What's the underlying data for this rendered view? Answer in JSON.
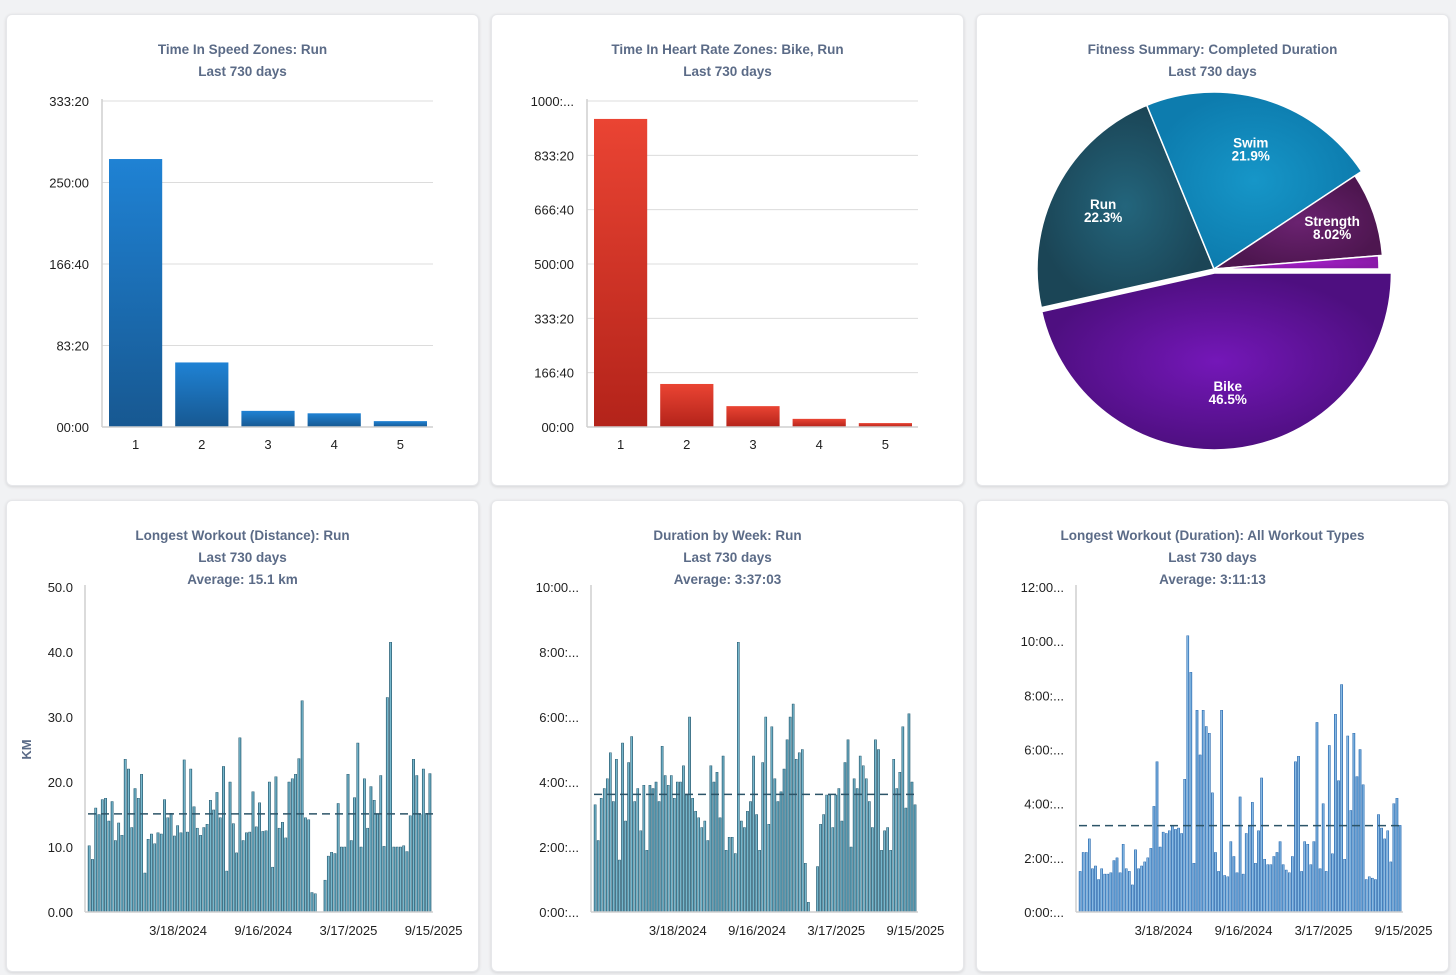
{
  "colors": {
    "title": "#5b6b87",
    "blue_bar": "#1e7fd0",
    "red_bar": "#e23b2c",
    "teal_bar": "#1d5a70",
    "blue_week_bar": "#1a63ad"
  },
  "chart_data": [
    {
      "type": "bar",
      "title": "Time In Speed Zones: Run",
      "subtitle": "Last 730 days",
      "categories": [
        "1",
        "2",
        "3",
        "4",
        "5"
      ],
      "values_hours": [
        274,
        66,
        16.5,
        14,
        6
      ],
      "y_ticks": [
        0,
        83.333,
        166.667,
        250,
        333.333
      ],
      "y_tick_labels": [
        "00:00",
        "83:20",
        "166:40",
        "250:00",
        "333:20"
      ],
      "ylim": [
        0,
        333.333
      ],
      "grid": true,
      "xlabel": "",
      "ylabel": ""
    },
    {
      "type": "bar",
      "title": "Time In Heart Rate Zones: Bike, Run",
      "subtitle": "Last 730 days",
      "categories": [
        "1",
        "2",
        "3",
        "4",
        "5"
      ],
      "values_hours": [
        945,
        132,
        64,
        25,
        12
      ],
      "y_ticks": [
        0,
        166.667,
        333.333,
        500,
        666.667,
        833.333,
        1000
      ],
      "y_tick_labels": [
        "00:00",
        "166:40",
        "333:20",
        "500:00",
        "666:40",
        "833:20",
        "1000:..."
      ],
      "ylim": [
        0,
        1000
      ],
      "grid": true,
      "xlabel": "",
      "ylabel": ""
    },
    {
      "type": "pie",
      "title": "Fitness Summary: Completed Duration",
      "subtitle": "Last 730 days",
      "slices": [
        {
          "label": "Bike",
          "value": 46.5,
          "text": "46.5%",
          "color": "#7417b8"
        },
        {
          "label": "Run",
          "value": 22.3,
          "text": "22.3%",
          "color": "#23657c"
        },
        {
          "label": "Swim",
          "value": 21.9,
          "text": "21.9%",
          "color": "#1696c8"
        },
        {
          "label": "Strength",
          "value": 8.02,
          "text": "8.02%",
          "color": "#6a2270"
        },
        {
          "label": "",
          "value": 1.28,
          "text": "",
          "color": "#a320c8"
        }
      ]
    },
    {
      "type": "bar",
      "title": "Longest Workout (Distance): Run",
      "subtitle": "Last 730 days",
      "average_label": "Average: 15.1 km",
      "average": 15.1,
      "ylabel": "KM",
      "ylim": [
        0,
        50
      ],
      "y_ticks": [
        0,
        10,
        20,
        30,
        40,
        50
      ],
      "y_tick_labels": [
        "0.00",
        "10.0",
        "20.0",
        "30.0",
        "40.0",
        "50.0"
      ],
      "x_ticks": [
        {
          "index": 27,
          "label": "3/18/2024"
        },
        {
          "index": 53,
          "label": "9/16/2024"
        },
        {
          "index": 79,
          "label": "3/17/2025"
        },
        {
          "index": 105,
          "label": "9/15/2025"
        }
      ],
      "values": [
        10.2,
        8.1,
        16,
        15,
        17.3,
        17.5,
        14,
        17,
        11,
        13.7,
        11.8,
        23.5,
        22,
        13,
        19,
        17.5,
        21.2,
        6,
        11.2,
        12,
        10.5,
        12.2,
        12,
        17.3,
        14.5,
        15.2,
        11.7,
        13.3,
        12.2,
        23.4,
        12.3,
        22,
        16.2,
        12.9,
        11.8,
        13,
        13.5,
        17.2,
        15.7,
        18.4,
        14.5,
        22.4,
        6.3,
        20,
        13.6,
        9.1,
        26.8,
        11,
        12.2,
        12.3,
        18.5,
        13.1,
        16.8,
        12.4,
        12.5,
        20,
        6.9,
        20.8,
        12.9,
        13.8,
        11.4,
        20,
        20.5,
        21.2,
        23.6,
        32.5,
        14.5,
        14.2,
        3,
        2.8,
        0,
        0,
        4.9,
        8.6,
        9.2,
        9,
        16.7,
        10,
        10,
        21.2,
        11,
        17.6,
        26,
        10,
        20.5,
        12.9,
        19.3,
        17.2,
        15.1,
        21,
        10.1,
        33,
        41.5,
        10,
        10,
        10,
        10.2,
        9.3,
        14.8,
        23.5,
        21,
        15,
        22,
        15.2,
        21.3
      ]
    },
    {
      "type": "bar",
      "title": "Duration by Week: Run",
      "subtitle": "Last 730 days",
      "average_label": "Average: 3:37:03",
      "average": 3.6175,
      "ylabel": "",
      "ylim": [
        0,
        10
      ],
      "y_ticks": [
        0,
        2,
        4,
        6,
        8,
        10
      ],
      "y_tick_labels": [
        "0:00:...",
        "2:00:...",
        "4:00:...",
        "6:00:...",
        "8:00:...",
        "10:00..."
      ],
      "x_ticks": [
        {
          "index": 27,
          "label": "3/18/2024"
        },
        {
          "index": 53,
          "label": "9/16/2024"
        },
        {
          "index": 79,
          "label": "3/17/2025"
        },
        {
          "index": 105,
          "label": "9/15/2025"
        }
      ],
      "values_hours": [
        3.3,
        2.2,
        3.5,
        3.8,
        4.1,
        4.9,
        3.4,
        4.7,
        1.6,
        5.2,
        2.8,
        4.6,
        5.4,
        3.4,
        3.8,
        2.5,
        3.9,
        1.9,
        3.9,
        3.8,
        4.0,
        3.4,
        5.1,
        4.2,
        3.9,
        4.2,
        3.5,
        4.0,
        4.0,
        4.5,
        3.6,
        6.0,
        3.5,
        3.1,
        2.9,
        2.6,
        2.8,
        2.2,
        4.5,
        4.0,
        4.3,
        2.9,
        4.8,
        1.9,
        2.3,
        2.3,
        1.8,
        8.3,
        2.8,
        2.6,
        3.1,
        3.4,
        4.8,
        3.0,
        1.9,
        4.6,
        6.0,
        2.7,
        5.7,
        4.1,
        3.4,
        3.7,
        4.4,
        5.3,
        6.0,
        6.4,
        4.7,
        4.9,
        5.0,
        1.5,
        0.3,
        0,
        0,
        1.4,
        2.7,
        3.0,
        3.6,
        3.6,
        2.6,
        3.6,
        3.8,
        2.8,
        4.6,
        5.3,
        2.0,
        4.1,
        3.8,
        4.8,
        4.5,
        4.1,
        3.4,
        2.6,
        5.3,
        5.0,
        1.9,
        2.5,
        2.6,
        1.9,
        4.7,
        3.8,
        4.3,
        5.7,
        3.2,
        6.1,
        4.0,
        3.3
      ]
    },
    {
      "type": "bar",
      "title": "Longest Workout (Duration): All Workout Types",
      "subtitle": "Last 730 days",
      "average_label": "Average: 3:11:13",
      "average": 3.187,
      "ylabel": "",
      "ylim": [
        0,
        12
      ],
      "y_ticks": [
        0,
        2,
        4,
        6,
        8,
        10,
        12
      ],
      "y_tick_labels": [
        "0:00:...",
        "2:00:...",
        "4:00:...",
        "6:00:...",
        "8:00:...",
        "10:00...",
        "12:00..."
      ],
      "x_ticks": [
        {
          "index": 27,
          "label": "3/18/2024"
        },
        {
          "index": 53,
          "label": "9/16/2024"
        },
        {
          "index": 79,
          "label": "3/17/2025"
        },
        {
          "index": 105,
          "label": "9/15/2025"
        }
      ],
      "values_hours": [
        1.5,
        2.2,
        2.2,
        2.7,
        1.6,
        1.7,
        1.2,
        1.6,
        1.4,
        1.4,
        1.45,
        1.9,
        2.0,
        1.45,
        2.5,
        1.6,
        1.5,
        1.0,
        2.3,
        1.6,
        1.7,
        1.85,
        2.0,
        2.35,
        3.9,
        5.55,
        2.4,
        2.95,
        2.9,
        3.0,
        3.2,
        3.05,
        3.1,
        2.9,
        4.9,
        10.2,
        8.85,
        1.8,
        7.45,
        5.8,
        7.45,
        6.85,
        6.6,
        4.4,
        2.2,
        1.5,
        7.45,
        1.35,
        1.3,
        2.6,
        2.05,
        1.45,
        4.25,
        1.4,
        2.9,
        3.15,
        4.05,
        1.8,
        3.0,
        4.95,
        1.95,
        1.75,
        1.75,
        2.05,
        2.2,
        2.6,
        1.75,
        1.55,
        1.45,
        2.05,
        5.55,
        5.75,
        1.5,
        2.6,
        2.5,
        1.75,
        2.6,
        7.0,
        1.6,
        4.0,
        1.5,
        6.15,
        2.15,
        7.3,
        4.85,
        8.4,
        1.95,
        6.5,
        3.75,
        6.6,
        5.0,
        6.0,
        4.7,
        1.2,
        1.3,
        1.25,
        1.2,
        3.6,
        3.1,
        2.7,
        3.0,
        1.85,
        4.0,
        4.2,
        3.2
      ]
    }
  ]
}
